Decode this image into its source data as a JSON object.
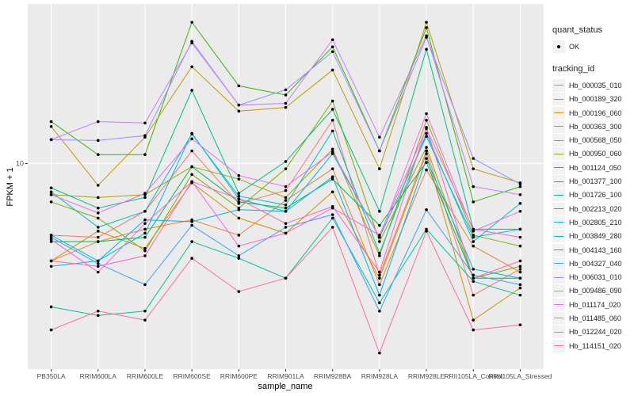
{
  "chart_data": {
    "type": "line",
    "title": "",
    "xlabel": "sample_name",
    "ylabel": "FPKM + 1",
    "y_scale": "log10",
    "ylim": [
      1.37,
      46.8
    ],
    "y_ticks": [
      10
    ],
    "y_tick_labels": [
      "10"
    ],
    "grid": true,
    "legend_position": "right",
    "categories": [
      "PB350LA",
      "RRIM600LA",
      "RRIM600LE",
      "RRIM600SE",
      "RRIM600PE",
      "RRIM901LA",
      "RRIM928BA",
      "RRIM928LA",
      "RRIM928LE",
      "RRII105LA_Control",
      "RRII105LA_Stressed"
    ],
    "shape_legend": {
      "title": "quant_status",
      "entries": [
        "OK"
      ]
    },
    "color_legend_title": "tracking_id",
    "point_color": "#000000",
    "series": [
      {
        "name": "Hb_000035_010",
        "color": "#F8766D",
        "values": [
          5.0,
          4.9,
          6.3,
          11.3,
          6.8,
          7.7,
          15.2,
          3.4,
          11.3,
          2.8,
          3.6
        ]
      },
      {
        "name": "Hb_000189_320",
        "color": "#EA8331",
        "values": [
          3.9,
          4.7,
          5.3,
          5.8,
          5.0,
          7.0,
          9.5,
          3.1,
          9.4,
          4.5,
          3.5
        ]
      },
      {
        "name": "Hb_000196_060",
        "color": "#D89000",
        "values": [
          3.9,
          5.2,
          4.4,
          8.3,
          5.9,
          5.1,
          7.6,
          3.3,
          11.0,
          2.2,
          3.0
        ]
      },
      {
        "name": "Hb_000363_300",
        "color": "#C09B00",
        "values": [
          14.3,
          8.1,
          12.9,
          25.5,
          16.6,
          17.2,
          24.7,
          9.5,
          39.2,
          9.5,
          8.3
        ]
      },
      {
        "name": "Hb_000568_050",
        "color": "#A3A500",
        "values": [
          7.4,
          7.2,
          7.4,
          9.7,
          8.6,
          7.2,
          11.5,
          4.1,
          15.2,
          5.0,
          4.5
        ]
      },
      {
        "name": "Hb_000950_060",
        "color": "#7CAE00",
        "values": [
          6.9,
          5.9,
          4.3,
          9.0,
          6.5,
          9.5,
          18.3,
          4.7,
          11.7,
          3.3,
          3.7
        ]
      },
      {
        "name": "Hb_001124_050",
        "color": "#39B600",
        "values": [
          15.0,
          10.9,
          10.9,
          39.2,
          21.2,
          19.4,
          30.9,
          11.3,
          37.2,
          6.9,
          8.0
        ]
      },
      {
        "name": "Hb_001377_100",
        "color": "#00BB4E",
        "values": [
          4.7,
          4.7,
          4.9,
          9.7,
          6.9,
          6.5,
          8.6,
          5.5,
          10.1,
          3.3,
          3.3
        ]
      },
      {
        "name": "Hb_001726_100",
        "color": "#00BF7D",
        "values": [
          7.9,
          6.5,
          7.2,
          20.3,
          7.5,
          10.2,
          16.9,
          6.3,
          30.2,
          5.3,
          5.3
        ]
      },
      {
        "name": "Hb_002213_020",
        "color": "#00C1A3",
        "values": [
          2.5,
          2.3,
          2.4,
          4.7,
          4.0,
          3.3,
          5.9,
          2.6,
          5.3,
          3.2,
          2.8
        ]
      },
      {
        "name": "Hb_002805_210",
        "color": "#00BFC4",
        "values": [
          7.6,
          5.4,
          6.3,
          13.3,
          7.3,
          6.7,
          13.7,
          4.2,
          13.4,
          4.7,
          6.8
        ]
      },
      {
        "name": "Hb_003849_280",
        "color": "#00BAE0",
        "values": [
          5.0,
          3.9,
          5.1,
          13.4,
          7.1,
          6.3,
          11.0,
          4.9,
          13.0,
          4.9,
          5.3
        ]
      },
      {
        "name": "Hb_004143_160",
        "color": "#00B0F6",
        "values": [
          3.7,
          3.9,
          5.8,
          5.7,
          6.4,
          6.3,
          8.8,
          2.8,
          10.5,
          3.6,
          3.3
        ]
      },
      {
        "name": "Hb_004327_040",
        "color": "#35A2FF",
        "values": [
          4.9,
          3.8,
          3.1,
          5.5,
          4.1,
          5.4,
          6.1,
          2.4,
          6.4,
          3.4,
          3.1
        ]
      },
      {
        "name": "Hb_006031_010",
        "color": "#9590FF",
        "values": [
          12.6,
          12.5,
          13.1,
          32.6,
          17.6,
          20.4,
          29.5,
          11.3,
          33.9,
          10.5,
          8.2
        ]
      },
      {
        "name": "Hb_009486_090",
        "color": "#C77CFF",
        "values": [
          12.6,
          15.0,
          14.8,
          32.1,
          17.6,
          17.9,
          33.1,
          12.9,
          34.4,
          8.0,
          7.4
        ]
      },
      {
        "name": "Hb_011174_020",
        "color": "#E76BF3",
        "values": [
          7.4,
          6.2,
          7.5,
          12.7,
          8.9,
          8.0,
          11.2,
          4.9,
          16.2,
          5.2,
          6.3
        ]
      },
      {
        "name": "Hb_011485_060",
        "color": "#FA62DB",
        "values": [
          4.8,
          3.5,
          5.6,
          8.4,
          4.5,
          5.1,
          6.5,
          5.0,
          14.0,
          5.3,
          4.9
        ]
      },
      {
        "name": "Hb_012244_020",
        "color": "#FF62BC",
        "values": [
          3.9,
          3.7,
          4.1,
          8.4,
          7.1,
          5.6,
          6.6,
          3.5,
          14.2,
          3.3,
          3.9
        ]
      },
      {
        "name": "Hb_114151_020",
        "color": "#FF6C91",
        "values": [
          2.0,
          2.4,
          2.2,
          4.0,
          2.9,
          3.3,
          5.4,
          1.6,
          5.2,
          2.0,
          2.1
        ]
      }
    ]
  }
}
